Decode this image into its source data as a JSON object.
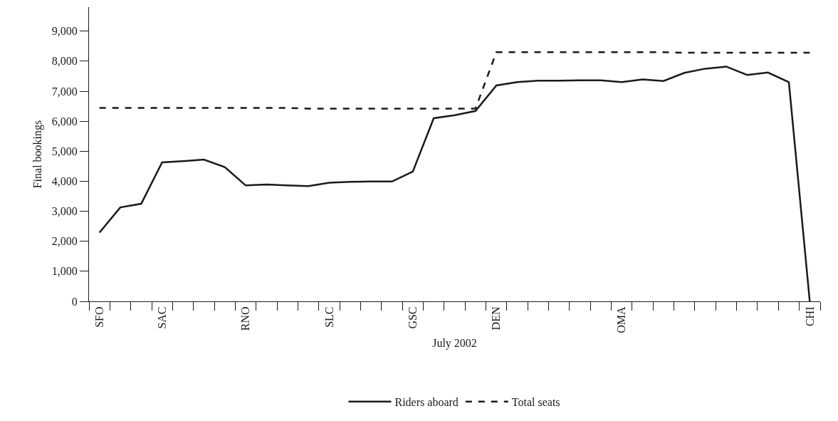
{
  "chart_data": {
    "type": "line",
    "xlabel": "July 2002",
    "ylabel": "Final bookings",
    "categories": [
      "SFO",
      null,
      null,
      "SAC",
      null,
      null,
      null,
      "RNO",
      null,
      null,
      null,
      "SLC",
      null,
      null,
      null,
      "GSC",
      null,
      null,
      null,
      "DEN",
      null,
      null,
      null,
      null,
      null,
      "OMA",
      null,
      null,
      null,
      null,
      null,
      null,
      null,
      null,
      "CHI"
    ],
    "series": [
      {
        "name": "Riders aboard",
        "color": "#1a1a1a",
        "line_style": "solid",
        "values": [
          2290,
          3130,
          3250,
          4630,
          4670,
          4720,
          4470,
          3860,
          3890,
          3860,
          3840,
          3950,
          3980,
          3990,
          3990,
          4320,
          6100,
          6200,
          6340,
          7190,
          7300,
          7350,
          7350,
          7360,
          7360,
          7300,
          7390,
          7340,
          7610,
          7750,
          7820,
          7540,
          7620,
          7300,
          0
        ]
      },
      {
        "name": "Total seats",
        "color": "#1a1a1a",
        "line_style": "dashed",
        "values": [
          6440,
          6440,
          6440,
          6440,
          6440,
          6440,
          6440,
          6440,
          6440,
          6440,
          6420,
          6420,
          6420,
          6420,
          6420,
          6420,
          6420,
          6420,
          6420,
          8300,
          8300,
          8300,
          8300,
          8300,
          8300,
          8300,
          8300,
          8300,
          8280,
          8280,
          8280,
          8280,
          8280,
          8280,
          8280
        ]
      }
    ],
    "ylim": [
      0,
      9800
    ],
    "yticks": [
      {
        "value": 0,
        "label": "0"
      },
      {
        "value": 1000,
        "label": "1,000"
      },
      {
        "value": 2000,
        "label": "2,000"
      },
      {
        "value": 3000,
        "label": "3,000"
      },
      {
        "value": 4000,
        "label": "4,000"
      },
      {
        "value": 5000,
        "label": "5,000"
      },
      {
        "value": 6000,
        "label": "6,000"
      },
      {
        "value": 7000,
        "label": "7,000"
      },
      {
        "value": 8000,
        "label": "8,000"
      },
      {
        "value": 9000,
        "label": "9,000"
      }
    ],
    "legend": "bottom",
    "marker": "none"
  }
}
